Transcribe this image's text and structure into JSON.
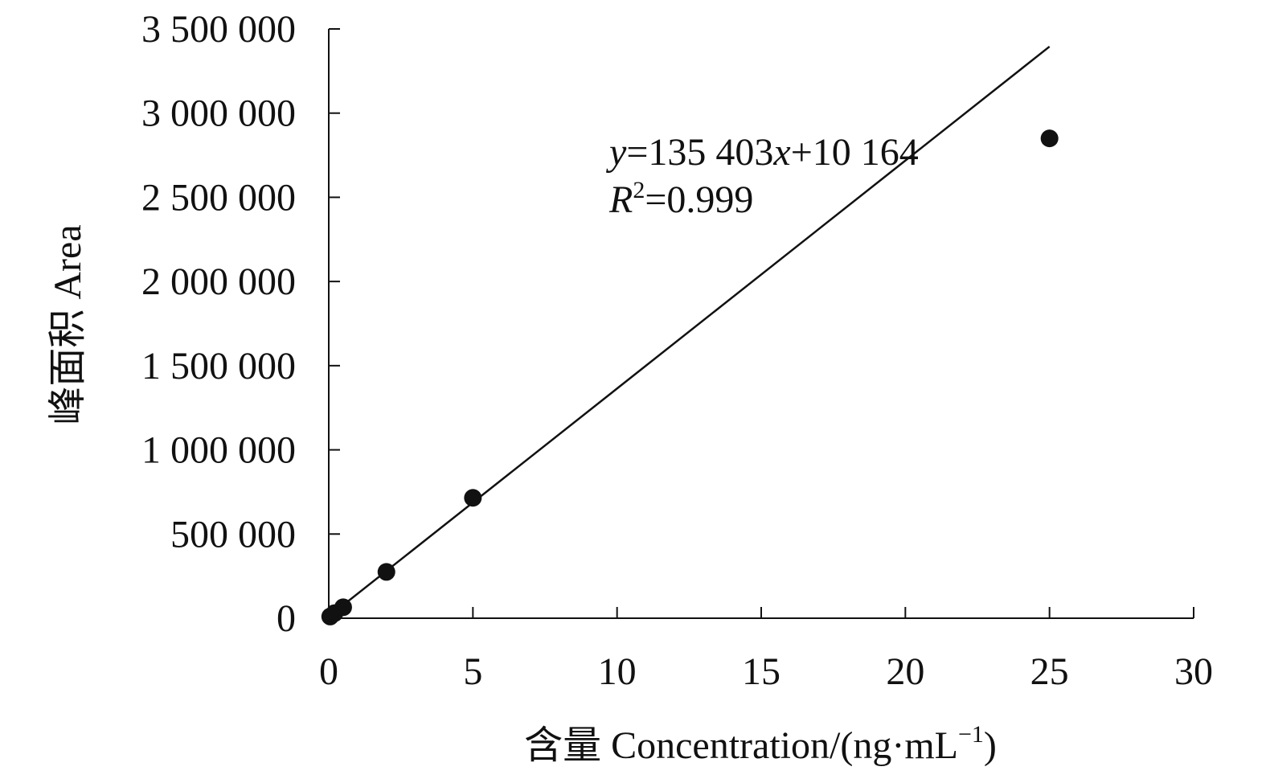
{
  "chart_data": {
    "type": "scatter",
    "title": "",
    "xlabel": "含量 Concentration/(ng·mL⁻¹)",
    "ylabel": "峰面积 Area",
    "xlim": [
      0,
      30
    ],
    "ylim": [
      0,
      3500000
    ],
    "x_ticks": [
      0,
      5,
      10,
      15,
      20,
      25,
      30
    ],
    "y_ticks": [
      0,
      500000,
      1000000,
      1500000,
      2000000,
      2500000,
      3000000,
      3500000
    ],
    "x_tick_labels": [
      "0",
      "5",
      "10",
      "15",
      "20",
      "25",
      "30"
    ],
    "y_tick_labels": [
      "0",
      "500 000",
      "1 000 000",
      "1 500 000",
      "2 000 000",
      "2 500 000",
      "3 000 000",
      "3 500 000"
    ],
    "points": [
      {
        "x": 0.05,
        "y": 10000
      },
      {
        "x": 0.2,
        "y": 30000
      },
      {
        "x": 0.5,
        "y": 65000
      },
      {
        "x": 2,
        "y": 275000
      },
      {
        "x": 5,
        "y": 715000
      },
      {
        "x": 25,
        "y": 2850000
      }
    ],
    "trendline": {
      "slope": 135403,
      "intercept": 10164,
      "x_range": [
        0,
        25
      ]
    },
    "equation": {
      "text": "y=135 403x+10 164",
      "r2_text": "R²=0.999"
    },
    "grid": false,
    "legend": "none",
    "colors": {
      "points": "#111111",
      "line": "#111111",
      "axes": "#111111"
    }
  }
}
